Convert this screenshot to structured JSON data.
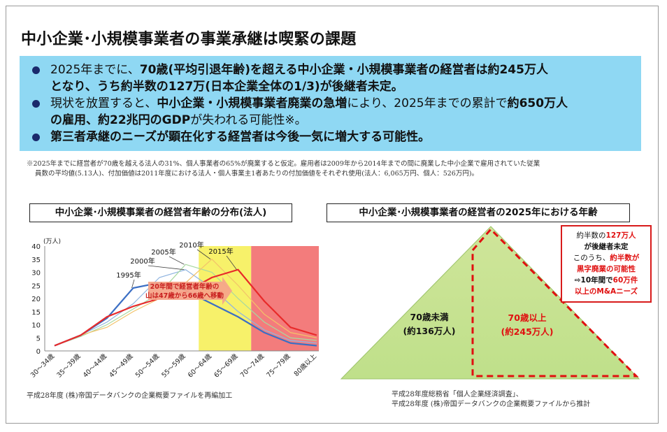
{
  "page": {
    "title": "中小企業･小規模事業者の事業承継は喫緊の課題"
  },
  "bullets": [
    {
      "line1": [
        {
          "t": "2025年までに、",
          "b": false
        },
        {
          "t": "70歳",
          "b": true
        },
        {
          "t": "(平均引退年齢)",
          "b": true
        },
        {
          "t": "を超える中小企業・小規模事業者の経営者は約245万人",
          "b": true
        }
      ],
      "line2": [
        {
          "t": "となり、うち約半数の127万(日本企業全体の1/3)が後継者未定。",
          "b": true
        }
      ]
    },
    {
      "line1": [
        {
          "t": "現状を放置すると、",
          "b": false
        },
        {
          "t": "中小企業・小規模事業者廃業の急増",
          "b": true
        },
        {
          "t": "により、2025年までの累計で",
          "b": false
        },
        {
          "t": "約650万人",
          "b": true
        }
      ],
      "line2": [
        {
          "t": "の雇用、",
          "b": true
        },
        {
          "t": "約22兆円のGDP",
          "b": true
        },
        {
          "t": "が失われる可能性※。",
          "b": false
        }
      ]
    },
    {
      "line1": [
        {
          "t": "第三者承継のニーズが顕在化する経営者は今後一気に増大する可能性。",
          "b": true
        }
      ],
      "line2": []
    }
  ],
  "note": {
    "line1": "※2025年までに経営者が70歳を越える法人の31%、個人事業者の65%が廃業すると仮定。雇用者は2009年から2014年までの間に廃業した中小企業で雇用されていた従業",
    "line2": "員数の平均値(5.13人)、付加価値は2011年度における法人・個人事業主1者あたりの付加価値をそれぞれ使用(法人：6,065万円、個人：526万円)。"
  },
  "left_chart": {
    "title": "中小企業･小規模事業者の経営者年齢の分布(法人)",
    "source": "平成28年度 (株)帝国データバンクの企業概要ファイルを再編加工",
    "annotation_line1": "20年間で経営者年齢の",
    "annotation_line2": "山は47歳から66歳へ移動"
  },
  "right_chart": {
    "title": "中小企業･小規模事業者の経営者の2025年における年齢",
    "left_label_1": "70歳未満",
    "left_label_2": "(約136万人)",
    "right_label_1": "70歳以上",
    "right_label_2": "(約245万人)",
    "callout": {
      "l1a": "約半数の",
      "l1b": "127万人",
      "l2": "が後継者未定",
      "l3a": "このうち、",
      "l3b": "約半数が",
      "l4": "黒字廃業の可能性",
      "l5a": "⇨10年間で",
      "l5b": "60万件",
      "l6": "以上のM&Aニーズ"
    },
    "source_line1": "平成28年度総務省「個人企業経済調査」、",
    "source_line2": "平成28年度 (株)帝国データバンクの企業概要ファイルから推計"
  },
  "chart_data": {
    "type": "line",
    "title": "中小企業･小規模事業者の経営者年齢の分布(法人)",
    "ylabel": "(万人)",
    "ylim": [
      0,
      40
    ],
    "yticks": [
      "0",
      "5",
      "10",
      "15",
      "20",
      "25",
      "30",
      "35",
      "40"
    ],
    "categories": [
      "30～34歳",
      "35～39歳",
      "40～44歳",
      "45～49歳",
      "50～54歳",
      "55～59歳",
      "60～64歳",
      "65～69歳",
      "70～74歳",
      "75～79歳",
      "80歳以上"
    ],
    "series": [
      {
        "name": "1995年",
        "color": "#3c6fc4",
        "width": 2.2,
        "values": [
          2,
          6,
          12.5,
          24,
          26,
          23,
          18,
          13,
          7,
          3,
          2
        ]
      },
      {
        "name": "2000年",
        "color": "#8fb4e0",
        "width": 1.2,
        "values": [
          2,
          6,
          11,
          18,
          28,
          31,
          24,
          15,
          8,
          4,
          3
        ]
      },
      {
        "name": "2005年",
        "color": "#a8d8a0",
        "width": 1.2,
        "values": [
          2,
          5.5,
          10,
          16,
          22,
          33,
          30,
          20,
          11,
          5,
          4
        ]
      },
      {
        "name": "2010年",
        "color": "#f3c26a",
        "width": 1.2,
        "values": [
          2,
          6,
          9,
          15,
          20,
          26,
          35,
          25,
          14,
          7,
          5
        ]
      },
      {
        "name": "2015年",
        "color": "#e82a2a",
        "width": 2.2,
        "values": [
          2,
          6,
          13,
          17,
          20,
          22.5,
          28,
          31,
          19,
          9,
          6
        ]
      }
    ],
    "highlight_bands": [
      {
        "from": "60～64歳",
        "to": "65～69歳",
        "color": "#f6f05a"
      },
      {
        "from": "70～74歳",
        "to": "80歳以上",
        "color": "#f26e6e"
      }
    ]
  }
}
